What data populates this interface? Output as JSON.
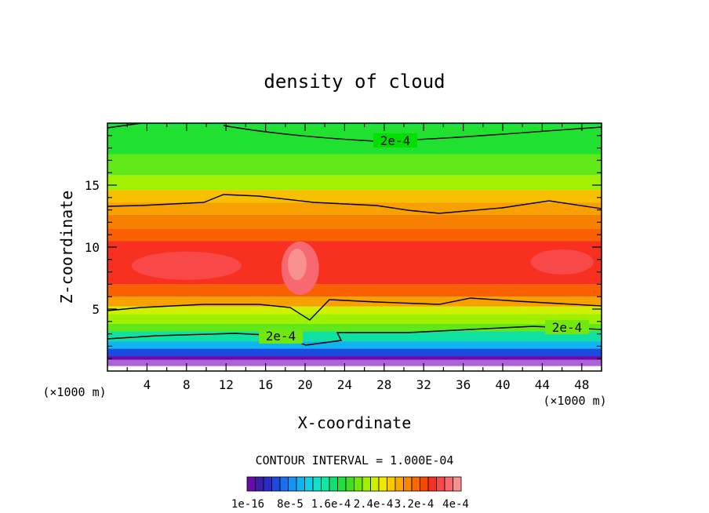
{
  "chart_data": {
    "type": "heatmap",
    "title": "density of cloud",
    "xlabel": "X-coordinate",
    "ylabel": "Z-coordinate",
    "x_unit": "(×1000 m)",
    "z_unit": "(×1000 m)",
    "xlim": [
      0,
      50
    ],
    "ylim": [
      0,
      20
    ],
    "x_ticks": [
      "4",
      "8",
      "12",
      "16",
      "20",
      "24",
      "28",
      "32",
      "36",
      "40",
      "44",
      "48"
    ],
    "y_ticks": [
      "5",
      "10",
      "15"
    ],
    "x_tick_values": [
      4,
      8,
      12,
      16,
      20,
      24,
      28,
      32,
      36,
      40,
      44,
      48
    ],
    "y_tick_values": [
      5,
      10,
      15
    ],
    "contour_interval_label": "CONTOUR INTERVAL = 1.000E-04",
    "contour_labels": [
      "2e-4",
      "2e-4",
      "2e-4"
    ],
    "colorbar_labels": [
      "1e-16",
      "8e-5",
      "1.6e-4",
      "2.4e-4",
      "3.2e-4",
      "4e-4"
    ],
    "colorbar_colors": [
      "#6a0aa8",
      "#3b1ea8",
      "#2a2cc8",
      "#1a4adf",
      "#1a6ef0",
      "#1a92f5",
      "#10b4f0",
      "#10d0e8",
      "#10e0c8",
      "#10e8a0",
      "#10e070",
      "#20e040",
      "#40e020",
      "#70e810",
      "#a0f000",
      "#d0f000",
      "#f0e800",
      "#f8c800",
      "#f8a800",
      "#f88800",
      "#f86800",
      "#f84800",
      "#f83020",
      "#f84848",
      "#f86870",
      "#f89090"
    ],
    "colorbar_min": 1e-16,
    "colorbar_max": 0.0004
  }
}
